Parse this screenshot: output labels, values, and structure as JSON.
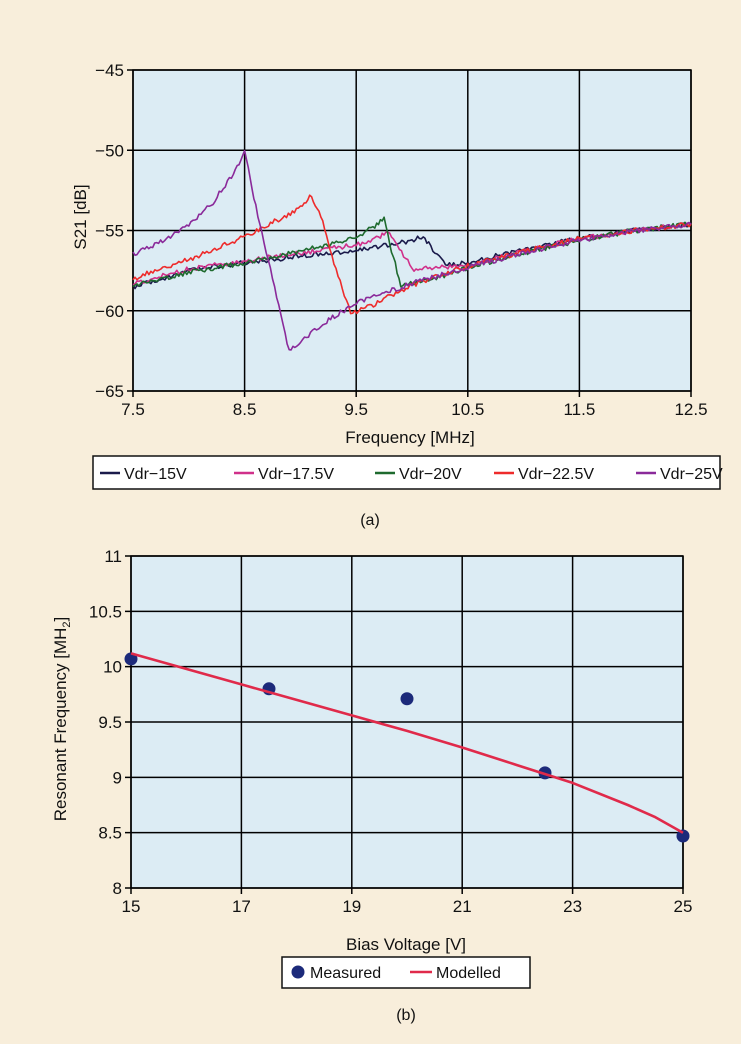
{
  "colors": {
    "background": "#f8eedb",
    "plot_bg": "#dcecf4",
    "grid": "#000000",
    "vdr_15": "#1a1a4a",
    "vdr_17_5": "#d0308a",
    "vdr_20": "#1e6a2e",
    "vdr_22_5": "#ee2b2b",
    "vdr_25": "#8a2a9a",
    "measured": "#1c2a7a",
    "modelled": "#e02a4a"
  },
  "chart_data": [
    {
      "type": "line",
      "panel_label": "(a)",
      "xlabel": "Frequency [MHz]",
      "ylabel": "S21 [dB]",
      "xlim": [
        7.5,
        12.5
      ],
      "ylim": [
        -65,
        -45
      ],
      "xticks": [
        "7.5",
        "8.5",
        "9.5",
        "10.5",
        "11.5",
        "12.5"
      ],
      "yticks": [
        "−45",
        "−50",
        "−55",
        "−60",
        "−65"
      ],
      "grid": true,
      "legend_position": "bottom",
      "series": [
        {
          "name": "Vdr−15V",
          "color": "#1a1a4a",
          "x": [
            7.5,
            8.0,
            8.5,
            9.0,
            9.5,
            9.8,
            10.0,
            10.1,
            10.15,
            10.3,
            10.5,
            11.0,
            11.5,
            12.0,
            12.5
          ],
          "y": [
            -58.5,
            -57.5,
            -57.0,
            -56.6,
            -56.2,
            -55.9,
            -55.6,
            -55.4,
            -55.8,
            -57.2,
            -57.0,
            -56.2,
            -55.5,
            -55.0,
            -54.6
          ]
        },
        {
          "name": "Vdr−17.5V",
          "color": "#d0308a",
          "x": [
            7.5,
            8.0,
            8.5,
            9.0,
            9.5,
            9.7,
            9.8,
            9.85,
            10.0,
            10.5,
            11.0,
            11.5,
            12.0,
            12.5
          ],
          "y": [
            -58.3,
            -57.4,
            -56.9,
            -56.4,
            -55.9,
            -55.4,
            -55.1,
            -55.6,
            -57.4,
            -57.2,
            -56.3,
            -55.5,
            -55.0,
            -54.6
          ]
        },
        {
          "name": "Vdr−20V",
          "color": "#1e6a2e",
          "x": [
            7.5,
            8.0,
            8.5,
            9.0,
            9.5,
            9.65,
            9.75,
            9.8,
            9.9,
            10.2,
            10.5,
            11.0,
            11.5,
            12.0,
            12.5
          ],
          "y": [
            -58.4,
            -57.6,
            -57.0,
            -56.3,
            -55.4,
            -54.8,
            -54.2,
            -55.8,
            -58.4,
            -58.0,
            -57.3,
            -56.4,
            -55.6,
            -55.0,
            -54.6
          ]
        },
        {
          "name": "Vdr−22.5V",
          "color": "#ee2b2b",
          "x": [
            7.5,
            8.0,
            8.5,
            9.0,
            9.1,
            9.2,
            9.3,
            9.45,
            9.6,
            10.0,
            10.5,
            11.0,
            11.5,
            12.0,
            12.5
          ],
          "y": [
            -58.0,
            -56.8,
            -55.4,
            -53.6,
            -52.8,
            -54.5,
            -57.0,
            -60.2,
            -59.8,
            -58.4,
            -57.2,
            -56.3,
            -55.5,
            -55.0,
            -54.6
          ]
        },
        {
          "name": "Vdr−25V",
          "color": "#8a2a9a",
          "x": [
            7.5,
            7.8,
            8.0,
            8.2,
            8.4,
            8.5,
            8.6,
            8.75,
            8.9,
            9.0,
            9.2,
            9.5,
            10.0,
            10.5,
            11.0,
            11.5,
            12.0,
            12.5
          ],
          "y": [
            -56.5,
            -55.5,
            -54.6,
            -53.4,
            -51.5,
            -50.0,
            -53.5,
            -58.0,
            -62.5,
            -62.0,
            -60.8,
            -59.5,
            -58.3,
            -57.3,
            -56.4,
            -55.6,
            -55.0,
            -54.6
          ]
        }
      ]
    },
    {
      "type": "scatter",
      "panel_label": "(b)",
      "xlabel": "Bias Voltage [V]",
      "ylabel_main": "Resonant Frequency [MH",
      "ylabel_sub": "2",
      "ylabel_close": "]",
      "xlim": [
        15,
        25
      ],
      "ylim": [
        8,
        11
      ],
      "xticks": [
        "15",
        "17",
        "19",
        "21",
        "23",
        "25"
      ],
      "yticks": [
        "11",
        "10.5",
        "10",
        "9.5",
        "9",
        "8.5",
        "8"
      ],
      "grid": true,
      "legend_position": "bottom",
      "series": [
        {
          "name": "Measured",
          "kind": "points",
          "color": "#1c2a7a",
          "x": [
            15,
            17.5,
            20,
            22.5,
            25
          ],
          "y": [
            10.07,
            9.8,
            9.71,
            9.04,
            8.47
          ]
        },
        {
          "name": "Modelled",
          "kind": "line",
          "color": "#e02a4a",
          "x": [
            15,
            16,
            17,
            18,
            19,
            20,
            21,
            22,
            23,
            24,
            24.5,
            25
          ],
          "y": [
            10.12,
            9.98,
            9.84,
            9.7,
            9.56,
            9.42,
            9.27,
            9.11,
            8.95,
            8.75,
            8.64,
            8.5
          ]
        }
      ]
    }
  ]
}
